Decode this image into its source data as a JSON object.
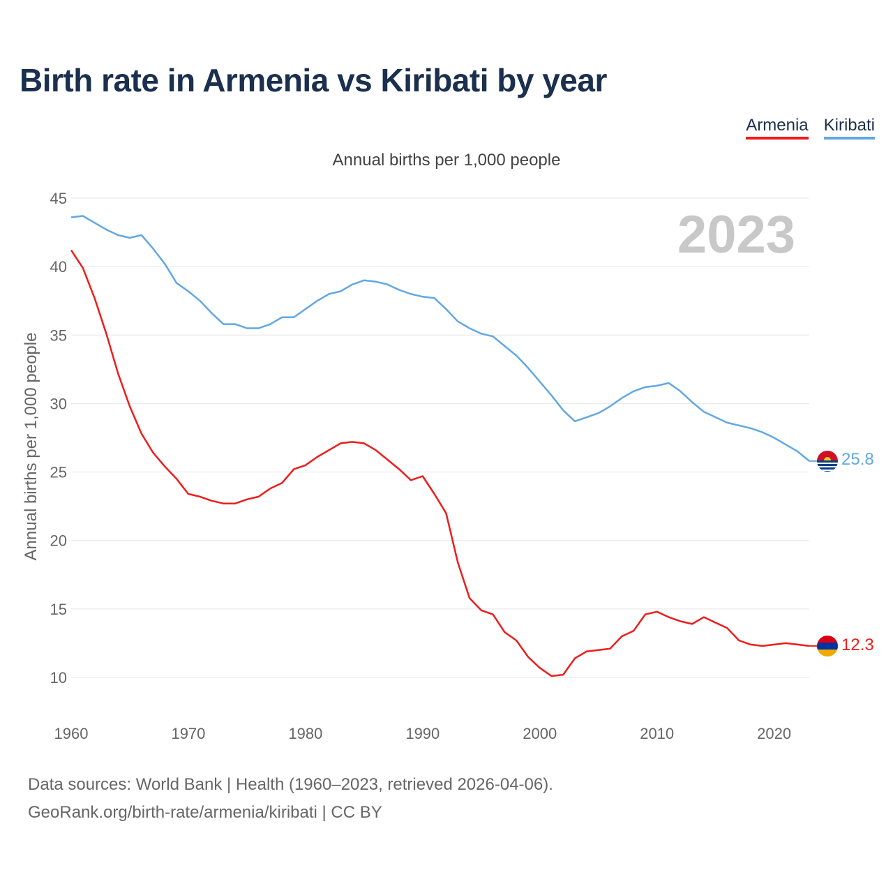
{
  "title": "Birth rate in Armenia vs Kiribati by year",
  "legend": {
    "armenia": "Armenia",
    "kiribati": "Kiribati"
  },
  "subtitle": "Annual births per 1,000 people",
  "footer": {
    "line1": "Data sources: World Bank | Health (1960–2023, retrieved 2026-04-06).",
    "line2": "GeoRank.org/birth-rate/armenia/kiribati | CC BY"
  },
  "colors": {
    "armenia": "#ee1c1c",
    "kiribati": "#62a7e4",
    "grid": "#e6e6e6",
    "year": "#c8c8c8"
  },
  "chart_data": {
    "type": "line",
    "title": "Birth rate in Armenia vs Kiribati by year",
    "ylabel": "Annual births per 1,000 people",
    "xlabel": "",
    "xlim": [
      1960,
      2023
    ],
    "ylim": [
      10,
      45
    ],
    "yticks": [
      10,
      15,
      20,
      25,
      30,
      35,
      40,
      45
    ],
    "xticks": [
      1960,
      1970,
      1980,
      1990,
      2000,
      2010,
      2020
    ],
    "year_label": "2023",
    "x": [
      1960,
      1961,
      1962,
      1963,
      1964,
      1965,
      1966,
      1967,
      1968,
      1969,
      1970,
      1971,
      1972,
      1973,
      1974,
      1975,
      1976,
      1977,
      1978,
      1979,
      1980,
      1981,
      1982,
      1983,
      1984,
      1985,
      1986,
      1987,
      1988,
      1989,
      1990,
      1991,
      1992,
      1993,
      1994,
      1995,
      1996,
      1997,
      1998,
      1999,
      2000,
      2001,
      2002,
      2003,
      2004,
      2005,
      2006,
      2007,
      2008,
      2009,
      2010,
      2011,
      2012,
      2013,
      2014,
      2015,
      2016,
      2017,
      2018,
      2019,
      2020,
      2021,
      2022,
      2023
    ],
    "series": [
      {
        "name": "Armenia",
        "end_label": "12.3",
        "flag": "armenia-flag-icon",
        "values": [
          41.2,
          39.9,
          37.7,
          35.1,
          32.2,
          29.8,
          27.8,
          26.4,
          25.4,
          24.5,
          23.4,
          23.2,
          22.9,
          22.7,
          22.7,
          23.0,
          23.2,
          23.8,
          24.2,
          25.2,
          25.5,
          26.1,
          26.6,
          27.1,
          27.2,
          27.1,
          26.6,
          25.9,
          25.2,
          24.4,
          24.7,
          23.4,
          22.0,
          18.4,
          15.8,
          14.9,
          14.6,
          13.3,
          12.7,
          11.5,
          10.7,
          10.1,
          10.2,
          11.4,
          11.9,
          12.0,
          12.1,
          13.0,
          13.4,
          14.6,
          14.8,
          14.4,
          14.1,
          13.9,
          14.4,
          14.0,
          13.6,
          12.7,
          12.4,
          12.3,
          12.4,
          12.5,
          12.4,
          12.3
        ]
      },
      {
        "name": "Kiribati",
        "end_label": "25.8",
        "flag": "kiribati-flag-icon",
        "values": [
          43.6,
          43.7,
          43.2,
          42.7,
          42.3,
          42.1,
          42.3,
          41.3,
          40.2,
          38.8,
          38.2,
          37.5,
          36.6,
          35.8,
          35.8,
          35.5,
          35.5,
          35.8,
          36.3,
          36.3,
          36.9,
          37.5,
          38.0,
          38.2,
          38.7,
          39.0,
          38.9,
          38.7,
          38.3,
          38.0,
          37.8,
          37.7,
          36.9,
          36.0,
          35.5,
          35.1,
          34.9,
          34.2,
          33.5,
          32.6,
          31.6,
          30.6,
          29.5,
          28.7,
          29.0,
          29.3,
          29.8,
          30.4,
          30.9,
          31.2,
          31.3,
          31.5,
          30.9,
          30.1,
          29.4,
          29.0,
          28.6,
          28.4,
          28.2,
          27.9,
          27.5,
          27.0,
          26.5,
          25.8
        ]
      }
    ]
  }
}
